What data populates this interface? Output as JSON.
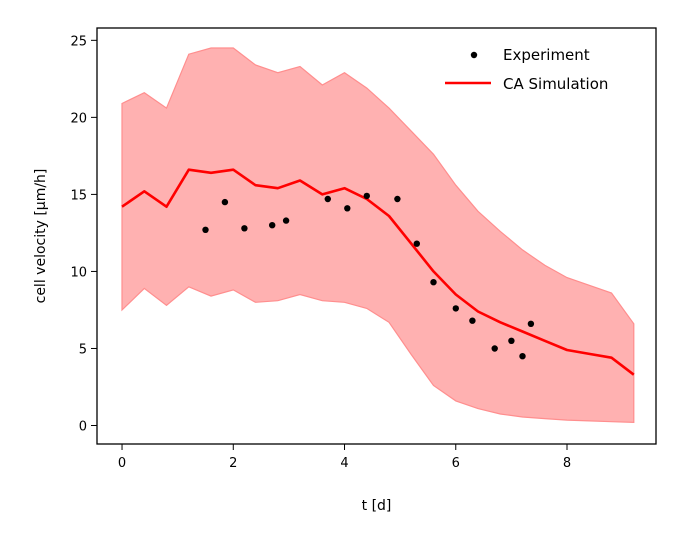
{
  "chart_data": {
    "type": "line",
    "title": "",
    "xlabel": "t [d]",
    "ylabel": "cell velocity [μm/h]",
    "xlim": [
      -0.45,
      9.6
    ],
    "ylim": [
      -1.2,
      25.8
    ],
    "xticks": [
      0,
      2,
      4,
      6,
      8
    ],
    "yticks": [
      0,
      5,
      10,
      15,
      20,
      25
    ],
    "grid": false,
    "legend_position": "top-right",
    "colors": {
      "simulation": "#ff0000",
      "band_fill": "#ffb1b1",
      "band_edge": "#ff8e8e",
      "experiment": "#000000"
    },
    "series": [
      {
        "name": "Experiment",
        "kind": "scatter",
        "x": [
          1.5,
          1.85,
          2.2,
          2.7,
          2.95,
          3.7,
          4.05,
          4.4,
          4.95,
          5.3,
          5.6,
          6.0,
          6.3,
          6.7,
          7.0,
          7.2,
          7.35
        ],
        "y": [
          12.7,
          14.5,
          12.8,
          13.0,
          13.3,
          14.7,
          14.1,
          14.9,
          14.7,
          11.8,
          9.3,
          7.6,
          6.8,
          5.0,
          5.5,
          4.5,
          6.6
        ]
      },
      {
        "name": "CA Simulation",
        "kind": "line",
        "x": [
          0,
          0.4,
          0.8,
          1.2,
          1.6,
          2.0,
          2.4,
          2.8,
          3.2,
          3.6,
          4.0,
          4.4,
          4.8,
          5.2,
          5.6,
          6.0,
          6.4,
          6.8,
          7.2,
          7.6,
          8.0,
          8.4,
          8.8,
          9.2
        ],
        "y": [
          14.2,
          15.2,
          14.2,
          16.6,
          16.4,
          16.6,
          15.6,
          15.4,
          15.9,
          15.0,
          15.4,
          14.7,
          13.6,
          11.8,
          10.0,
          8.5,
          7.4,
          6.7,
          6.1,
          5.5,
          4.9,
          4.65,
          4.4,
          3.3
        ]
      },
      {
        "name": "band",
        "kind": "band",
        "x": [
          0,
          0.4,
          0.8,
          1.2,
          1.6,
          2.0,
          2.4,
          2.8,
          3.2,
          3.6,
          4.0,
          4.4,
          4.8,
          5.2,
          5.6,
          6.0,
          6.4,
          6.8,
          7.2,
          7.6,
          8.0,
          8.4,
          8.8,
          9.2
        ],
        "upper": [
          20.9,
          21.6,
          20.6,
          24.1,
          24.5,
          24.5,
          23.4,
          22.9,
          23.3,
          22.1,
          22.9,
          21.9,
          20.6,
          19.1,
          17.6,
          15.6,
          13.9,
          12.6,
          11.4,
          10.4,
          9.6,
          9.1,
          8.6,
          6.6
        ],
        "lower": [
          7.5,
          8.9,
          7.8,
          9.0,
          8.4,
          8.8,
          8.0,
          8.1,
          8.5,
          8.1,
          8.0,
          7.6,
          6.7,
          4.6,
          2.6,
          1.6,
          1.1,
          0.75,
          0.55,
          0.45,
          0.35,
          0.3,
          0.25,
          0.2
        ]
      }
    ]
  }
}
